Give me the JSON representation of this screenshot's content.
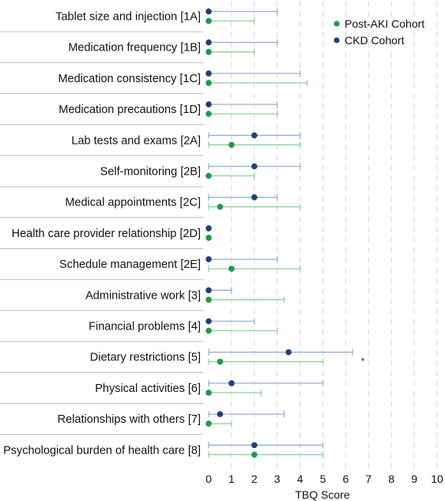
{
  "chart_data": {
    "type": "scatter",
    "subtype": "dot-with-range",
    "orientation": "horizontal",
    "title": "",
    "xlabel": "TBQ Score",
    "ylabel": "",
    "xlim": [
      0,
      10
    ],
    "xticks": [
      "0",
      "1",
      "2",
      "3",
      "4",
      "5",
      "6",
      "7",
      "8",
      "9",
      "10"
    ],
    "grid": "vertical dashed",
    "legend_position": "top-right",
    "categories": [
      "Tablet size and injection [1A]",
      "Medication frequency [1B]",
      "Medication consistency [1C]",
      "Medication precautions [1D]",
      "Lab tests and exams [2A]",
      "Self-monitoring [2B]",
      "Medical appointments [2C]",
      "Health care provider relationship [2D]",
      "Schedule management [2E]",
      "Administrative work [3]",
      "Financial problems [4]",
      "Dietary restrictions [5]",
      "Physical activities [6]",
      "Relationships with others [7]",
      "Psychological burden of health care [8]"
    ],
    "series": [
      {
        "name": "CKD Cohort",
        "color": "#1f3f7f",
        "range_color": "#9ab0d6",
        "values": [
          0,
          0,
          0,
          0,
          2,
          2,
          2,
          0,
          0,
          0,
          0,
          3.5,
          1,
          0.5,
          2
        ],
        "range_upper": [
          3,
          3,
          4,
          3,
          4,
          4,
          3,
          0,
          3,
          1,
          2,
          6.3,
          5,
          3.3,
          5
        ]
      },
      {
        "name": "Post-AKI Cohort",
        "color": "#1e9a4b",
        "range_color": "#8fd39f",
        "values": [
          0,
          0,
          0,
          0,
          1,
          0,
          0.5,
          0,
          1,
          0,
          0,
          0.5,
          0,
          0,
          2
        ],
        "range_upper": [
          2,
          2,
          4.3,
          3,
          4,
          2,
          4,
          0,
          4,
          3.3,
          3,
          5,
          2.3,
          1,
          5
        ]
      }
    ],
    "annotations": [
      {
        "category": "Dietary restrictions [5]",
        "text": "*"
      }
    ]
  },
  "legend": [
    {
      "name": "Post-AKI Cohort",
      "color": "#1e9a4b"
    },
    {
      "name": "CKD Cohort",
      "color": "#1f3f7f"
    }
  ]
}
